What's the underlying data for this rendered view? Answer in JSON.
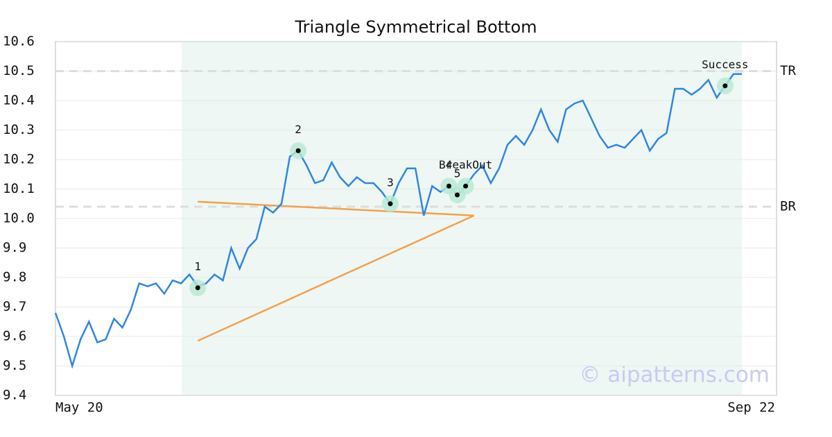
{
  "chart_data": {
    "type": "line",
    "title": "Triangle Symmetrical Bottom",
    "categories": [
      "May 20",
      null,
      null,
      null,
      null,
      null,
      null,
      null,
      null,
      null,
      null,
      null,
      null,
      null,
      null,
      null,
      null,
      null,
      null,
      null,
      null,
      null,
      null,
      null,
      null,
      null,
      null,
      null,
      null,
      null,
      null,
      null,
      null,
      null,
      null,
      null,
      null,
      null,
      null,
      null,
      null,
      null,
      null,
      null,
      null,
      null,
      null,
      null,
      null,
      null,
      null,
      null,
      null,
      null,
      null,
      null,
      null,
      null,
      null,
      null,
      null,
      null,
      null,
      null,
      null,
      null,
      null,
      null,
      null,
      null,
      null,
      null,
      null,
      null,
      null,
      null,
      null,
      null,
      null,
      null,
      null,
      null,
      "Sep 22"
    ],
    "series": [
      {
        "color": "#2f86e0",
        "values": [
          9.68,
          9.6,
          9.5,
          9.59,
          9.65,
          9.58,
          9.59,
          9.66,
          9.63,
          9.69,
          9.78,
          9.77,
          9.78,
          9.745,
          9.79,
          9.78,
          9.81,
          9.77,
          9.78,
          9.81,
          9.79,
          9.9,
          9.83,
          9.9,
          9.93,
          10.04,
          10.02,
          10.05,
          10.21,
          10.23,
          10.18,
          10.12,
          10.13,
          10.19,
          10.14,
          10.11,
          10.14,
          10.12,
          10.12,
          10.09,
          10.05,
          10.12,
          10.17,
          10.17,
          10.01,
          10.11,
          10.09,
          10.11,
          10.08,
          10.11,
          10.15,
          10.18,
          10.12,
          10.17,
          10.25,
          10.28,
          10.25,
          10.3,
          10.37,
          10.3,
          10.26,
          10.37,
          10.39,
          10.4,
          10.34,
          10.28,
          10.24,
          10.25,
          10.24,
          10.27,
          10.3,
          10.23,
          10.27,
          10.29,
          10.44,
          10.44,
          10.42,
          10.44,
          10.47,
          10.41,
          10.45,
          10.49,
          10.49
        ]
      }
    ],
    "ylim": [
      9.4,
      10.6
    ],
    "yticks": [
      9.4,
      9.5,
      9.6,
      9.7,
      9.8,
      9.9,
      {
        "value": 10,
        "label": "10.0"
      },
      10.1,
      10.2,
      10.3,
      10.4,
      10.5,
      10.6
    ],
    "grid": true,
    "levels": [
      {
        "name": "TR",
        "value": 10.5
      },
      {
        "name": "BR",
        "value": 10.04
      }
    ],
    "trendlines": [
      {
        "color": "#f5a04a",
        "x": [
          17,
          50
        ],
        "values": [
          10.057,
          10.01
        ]
      },
      {
        "color": "#f5a04a",
        "x": [
          17,
          50
        ],
        "values": [
          9.585,
          10.01
        ]
      }
    ],
    "annotations": [
      {
        "label": "1",
        "x": 17,
        "value": 9.765
      },
      {
        "label": "2",
        "x": 29,
        "value": 10.23
      },
      {
        "label": "3",
        "x": 40,
        "value": 10.05
      },
      {
        "label": "4",
        "x": 47,
        "value": 10.11
      },
      {
        "label": "5",
        "x": 48,
        "value": 10.08
      },
      {
        "label": "BreakOut",
        "x": 49,
        "value": 10.11
      },
      {
        "label": "Success",
        "x": 80,
        "value": 10.45
      }
    ],
    "watermark": "© aipatterns.com"
  }
}
